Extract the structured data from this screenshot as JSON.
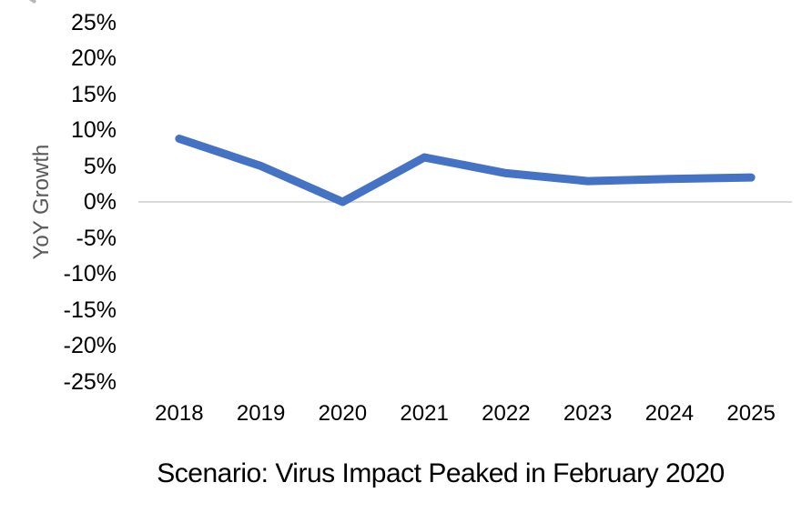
{
  "chart_data": {
    "type": "line",
    "title": "Scenario: Virus Impact Peaked in February 2020",
    "ylabel": "YoY Growth",
    "xlabel": "",
    "categories": [
      "2018",
      "2019",
      "2020",
      "2021",
      "2022",
      "2023",
      "2024",
      "2025"
    ],
    "values": [
      8.8,
      5.0,
      0.0,
      6.2,
      4.0,
      2.9,
      3.2,
      3.4
    ],
    "ylim": [
      -25,
      25
    ],
    "ytick_values": [
      25,
      20,
      15,
      10,
      5,
      0,
      -5,
      -10,
      -15,
      -20,
      -25
    ],
    "ytick_labels": [
      "25%",
      "20%",
      "15%",
      "10%",
      "5%",
      "0%",
      "-5%",
      "-10%",
      "-15%",
      "-20%",
      "-25%"
    ],
    "grid": "single horizontal gridline at 0% only",
    "legend": "none",
    "colors": {
      "line": "#4472C4",
      "gridline": "#D9D9D9",
      "tick_text": "#000000",
      "axis_title_text": "#595959",
      "background": "#FFFFFF"
    }
  }
}
